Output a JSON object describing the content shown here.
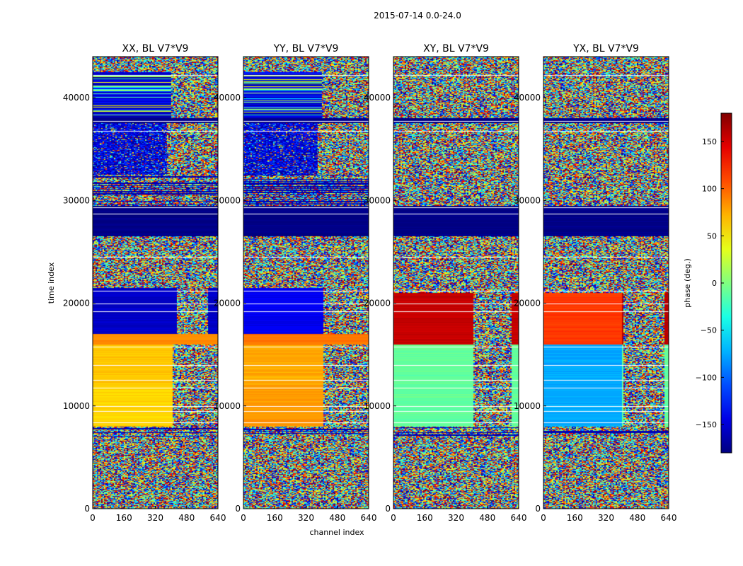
{
  "figure_title": "2015-07-14 0.0-24.0",
  "chart_data": {
    "type": "heatmap",
    "title": "2015-07-14 0.0-24.0",
    "xlabel": "channel index",
    "ylabel": "time index",
    "xlim": [
      0,
      640
    ],
    "ylim": [
      0,
      44000
    ],
    "x_ticks": [
      "0",
      "160",
      "320",
      "480",
      "640"
    ],
    "y_ticks": [
      "0",
      "10000",
      "20000",
      "30000",
      "40000"
    ],
    "y_tick_values": [
      0,
      10000,
      20000,
      30000,
      40000
    ],
    "x_tick_values": [
      0,
      160,
      320,
      480,
      640
    ],
    "colorbar": {
      "label": "phase (deg.)",
      "range": [
        -180,
        180
      ],
      "tick_values": [
        -150,
        -100,
        -50,
        0,
        50,
        100,
        150
      ],
      "tick_labels": [
        "−150",
        "−100",
        "−50",
        "0",
        "50",
        "100",
        "150"
      ],
      "colormap": "jet"
    },
    "panels": [
      {
        "title": "XX, BL V7*V9",
        "regions": [
          {
            "t0": 0,
            "t1": 7000,
            "c0": 0,
            "c1": 640,
            "kind": "noise"
          },
          {
            "t0": 7000,
            "t1": 8000,
            "c0": 0,
            "c1": 640,
            "kind": "stripes"
          },
          {
            "t0": 8000,
            "t1": 12000,
            "c0": 0,
            "c1": 640,
            "kind": "value",
            "phase": 60
          },
          {
            "t0": 12000,
            "t1": 16000,
            "c0": 0,
            "c1": 640,
            "kind": "value",
            "phase": 65
          },
          {
            "t0": 8000,
            "t1": 16000,
            "c0": 410,
            "c1": 640,
            "kind": "noise"
          },
          {
            "t0": 16000,
            "t1": 17000,
            "c0": 0,
            "c1": 640,
            "kind": "value",
            "phase": 85
          },
          {
            "t0": 17000,
            "t1": 21500,
            "c0": 0,
            "c1": 640,
            "kind": "value",
            "phase": -155
          },
          {
            "t0": 17000,
            "t1": 21500,
            "c0": 430,
            "c1": 590,
            "kind": "noise"
          },
          {
            "t0": 21500,
            "t1": 26500,
            "c0": 0,
            "c1": 640,
            "kind": "noise"
          },
          {
            "t0": 26500,
            "t1": 29500,
            "c0": 0,
            "c1": 640,
            "kind": "value",
            "phase": -178
          },
          {
            "t0": 29500,
            "t1": 32500,
            "c0": 0,
            "c1": 640,
            "kind": "stripes"
          },
          {
            "t0": 32500,
            "t1": 37500,
            "c0": 0,
            "c1": 380,
            "kind": "darknoise"
          },
          {
            "t0": 32500,
            "t1": 37500,
            "c0": 380,
            "c1": 640,
            "kind": "noise"
          },
          {
            "t0": 37500,
            "t1": 38000,
            "c0": 0,
            "c1": 640,
            "kind": "value",
            "phase": -178
          },
          {
            "t0": 38000,
            "t1": 42500,
            "c0": 0,
            "c1": 400,
            "kind": "bluestripes"
          },
          {
            "t0": 38000,
            "t1": 42500,
            "c0": 400,
            "c1": 640,
            "kind": "noise"
          },
          {
            "t0": 42500,
            "t1": 44000,
            "c0": 0,
            "c1": 640,
            "kind": "noise"
          }
        ]
      },
      {
        "title": "YY, BL V7*V9",
        "regions": [
          {
            "t0": 0,
            "t1": 7000,
            "c0": 0,
            "c1": 640,
            "kind": "noise"
          },
          {
            "t0": 7000,
            "t1": 8000,
            "c0": 0,
            "c1": 640,
            "kind": "stripes"
          },
          {
            "t0": 8000,
            "t1": 12000,
            "c0": 0,
            "c1": 640,
            "kind": "value",
            "phase": 80
          },
          {
            "t0": 12000,
            "t1": 16000,
            "c0": 0,
            "c1": 640,
            "kind": "value",
            "phase": 75
          },
          {
            "t0": 8000,
            "t1": 16000,
            "c0": 410,
            "c1": 640,
            "kind": "noise"
          },
          {
            "t0": 16000,
            "t1": 17000,
            "c0": 0,
            "c1": 640,
            "kind": "value",
            "phase": 95
          },
          {
            "t0": 17000,
            "t1": 21500,
            "c0": 0,
            "c1": 640,
            "kind": "value",
            "phase": -140
          },
          {
            "t0": 17000,
            "t1": 21500,
            "c0": 410,
            "c1": 640,
            "kind": "noise"
          },
          {
            "t0": 21500,
            "t1": 26500,
            "c0": 0,
            "c1": 640,
            "kind": "noise"
          },
          {
            "t0": 26500,
            "t1": 29500,
            "c0": 0,
            "c1": 640,
            "kind": "value",
            "phase": -178
          },
          {
            "t0": 29500,
            "t1": 32500,
            "c0": 0,
            "c1": 640,
            "kind": "stripes"
          },
          {
            "t0": 32500,
            "t1": 37500,
            "c0": 0,
            "c1": 380,
            "kind": "darknoise"
          },
          {
            "t0": 32500,
            "t1": 37500,
            "c0": 380,
            "c1": 640,
            "kind": "noise"
          },
          {
            "t0": 37500,
            "t1": 38000,
            "c0": 0,
            "c1": 640,
            "kind": "value",
            "phase": -178
          },
          {
            "t0": 38000,
            "t1": 42500,
            "c0": 0,
            "c1": 400,
            "kind": "bluestripes"
          },
          {
            "t0": 38000,
            "t1": 42500,
            "c0": 400,
            "c1": 640,
            "kind": "noise"
          },
          {
            "t0": 42500,
            "t1": 44000,
            "c0": 0,
            "c1": 640,
            "kind": "noise"
          }
        ]
      },
      {
        "title": "XY, BL V7*V9",
        "regions": [
          {
            "t0": 0,
            "t1": 7000,
            "c0": 0,
            "c1": 640,
            "kind": "noise"
          },
          {
            "t0": 7000,
            "t1": 8000,
            "c0": 0,
            "c1": 640,
            "kind": "stripes"
          },
          {
            "t0": 8000,
            "t1": 16000,
            "c0": 0,
            "c1": 640,
            "kind": "value",
            "phase": -10
          },
          {
            "t0": 8000,
            "t1": 16000,
            "c0": 410,
            "c1": 600,
            "kind": "noise"
          },
          {
            "t0": 16000,
            "t1": 21000,
            "c0": 0,
            "c1": 640,
            "kind": "value",
            "phase": 155
          },
          {
            "t0": 16000,
            "t1": 21000,
            "c0": 410,
            "c1": 600,
            "kind": "noise"
          },
          {
            "t0": 21000,
            "t1": 26500,
            "c0": 0,
            "c1": 640,
            "kind": "noise"
          },
          {
            "t0": 26500,
            "t1": 29500,
            "c0": 0,
            "c1": 640,
            "kind": "value",
            "phase": -178
          },
          {
            "t0": 29500,
            "t1": 37500,
            "c0": 0,
            "c1": 640,
            "kind": "noise"
          },
          {
            "t0": 37500,
            "t1": 38000,
            "c0": 0,
            "c1": 640,
            "kind": "value",
            "phase": -178
          },
          {
            "t0": 38000,
            "t1": 44000,
            "c0": 0,
            "c1": 640,
            "kind": "noise"
          }
        ]
      },
      {
        "title": "YX, BL V7*V9",
        "regions": [
          {
            "t0": 0,
            "t1": 7000,
            "c0": 0,
            "c1": 640,
            "kind": "noise"
          },
          {
            "t0": 7000,
            "t1": 8000,
            "c0": 0,
            "c1": 640,
            "kind": "stripes"
          },
          {
            "t0": 8000,
            "t1": 16000,
            "c0": 0,
            "c1": 400,
            "kind": "value",
            "phase": -75
          },
          {
            "t0": 8000,
            "t1": 16000,
            "c0": 400,
            "c1": 640,
            "kind": "value",
            "phase": -10
          },
          {
            "t0": 8000,
            "t1": 16000,
            "c0": 410,
            "c1": 620,
            "kind": "noise"
          },
          {
            "t0": 16000,
            "t1": 21000,
            "c0": 0,
            "c1": 400,
            "kind": "value",
            "phase": 115
          },
          {
            "t0": 16000,
            "t1": 21000,
            "c0": 400,
            "c1": 640,
            "kind": "value",
            "phase": 160
          },
          {
            "t0": 16000,
            "t1": 21000,
            "c0": 410,
            "c1": 620,
            "kind": "noise"
          },
          {
            "t0": 21000,
            "t1": 26500,
            "c0": 0,
            "c1": 640,
            "kind": "noise"
          },
          {
            "t0": 26500,
            "t1": 29500,
            "c0": 0,
            "c1": 640,
            "kind": "value",
            "phase": -178
          },
          {
            "t0": 29500,
            "t1": 37500,
            "c0": 0,
            "c1": 640,
            "kind": "noise"
          },
          {
            "t0": 37500,
            "t1": 38000,
            "c0": 0,
            "c1": 640,
            "kind": "value",
            "phase": -178
          },
          {
            "t0": 38000,
            "t1": 44000,
            "c0": 0,
            "c1": 640,
            "kind": "noise"
          }
        ]
      }
    ],
    "white_gap_rows": [
      8400,
      9500,
      10000,
      11800,
      12500,
      14000,
      15800,
      19200,
      20000,
      21200,
      24500,
      28700,
      29300,
      36800,
      37700,
      42200
    ]
  }
}
